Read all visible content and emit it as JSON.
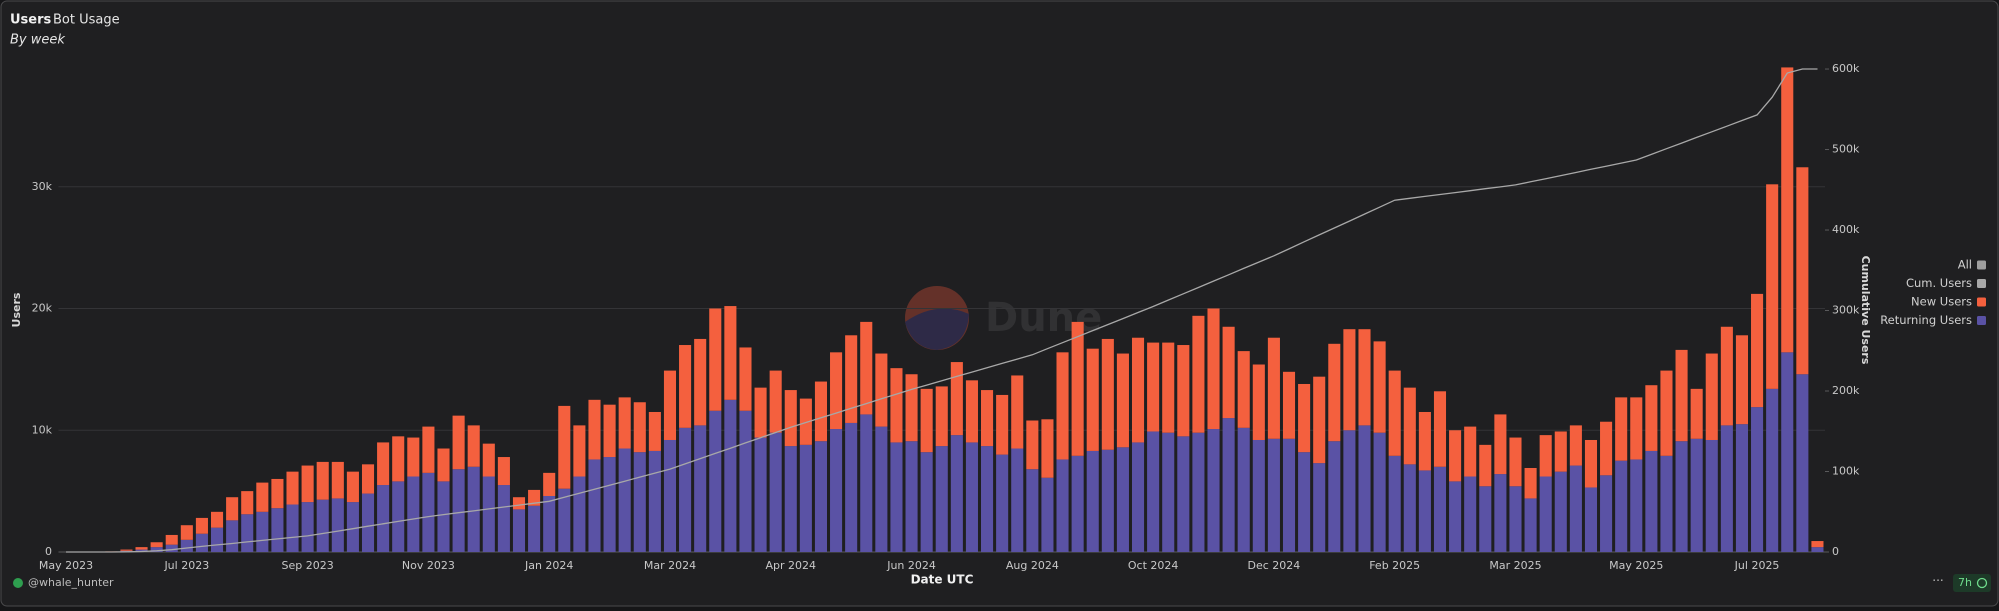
{
  "tabs": [
    "Users",
    "Bot Usage"
  ],
  "footer": {
    "author": "@whale_hunter",
    "age": "7h",
    "menu": "···"
  },
  "watermark": "Dune",
  "chart_data": {
    "type": "bar",
    "stacked": true,
    "subtitle": "By week",
    "x_label": "Date UTC",
    "y_label": "Users",
    "y2_label": "Cumulative Users",
    "legend_all": "All",
    "legend_all_color": "#9e9e9e",
    "legend_position": "right",
    "grid": true,
    "categories": [
      "May 2023",
      null,
      null,
      null,
      null,
      null,
      null,
      null,
      "Jul 2023",
      null,
      null,
      null,
      null,
      null,
      null,
      null,
      "Sep 2023",
      null,
      null,
      null,
      null,
      null,
      null,
      null,
      "Nov 2023",
      null,
      null,
      null,
      null,
      null,
      null,
      null,
      "Jan 2024",
      null,
      null,
      null,
      null,
      null,
      null,
      null,
      "Mar 2024",
      null,
      null,
      null,
      null,
      null,
      null,
      null,
      "Apr 2024",
      null,
      null,
      null,
      null,
      null,
      null,
      null,
      "Jun 2024",
      null,
      null,
      null,
      null,
      null,
      null,
      null,
      "Aug 2024",
      null,
      null,
      null,
      null,
      null,
      null,
      null,
      "Oct 2024",
      null,
      null,
      null,
      null,
      null,
      null,
      null,
      "Dec 2024",
      null,
      null,
      null,
      null,
      null,
      null,
      null,
      "Feb 2025",
      null,
      null,
      null,
      null,
      null,
      null,
      null,
      "Mar 2025",
      null,
      null,
      null,
      null,
      null,
      null,
      null,
      "May 2025",
      null,
      null,
      null,
      null,
      null,
      null,
      null,
      "Jul 2025",
      null,
      null,
      null,
      null
    ],
    "ylim": [
      0,
      40000
    ],
    "yticks": [
      0,
      {
        "value": 10000,
        "label": "10k"
      },
      {
        "value": 20000,
        "label": "20k"
      },
      {
        "value": 30000,
        "label": "30k"
      }
    ],
    "y2lim": [
      0,
      605000
    ],
    "y2ticks": [
      0,
      {
        "value": 100000,
        "label": "100k"
      },
      {
        "value": 200000,
        "label": "200k"
      },
      {
        "value": 300000,
        "label": "300k"
      },
      {
        "value": 400000,
        "label": "400k"
      },
      {
        "value": 500000,
        "label": "500k"
      },
      {
        "value": 600000,
        "label": "600k"
      }
    ],
    "series": [
      {
        "name": "Cum. Users",
        "type": "line",
        "axis": "y2",
        "color": "#a8a8a8",
        "values": [
          0,
          0,
          0,
          50,
          250,
          650,
          1450,
          2850,
          5000,
          6900,
          8800,
          10600,
          12500,
          14400,
          16300,
          18100,
          20000,
          23000,
          26000,
          29000,
          32000,
          35000,
          38000,
          41000,
          44000,
          46400,
          48800,
          51100,
          53500,
          55900,
          58300,
          60600,
          63000,
          68000,
          73000,
          78000,
          83000,
          88000,
          93000,
          98000,
          103000,
          109500,
          116000,
          122500,
          129000,
          135500,
          142000,
          148500,
          155000,
          160900,
          166800,
          172600,
          178500,
          184400,
          190300,
          196100,
          202000,
          207400,
          212800,
          218100,
          223500,
          228900,
          234300,
          239600,
          245000,
          252500,
          260000,
          267500,
          275000,
          282500,
          290000,
          297500,
          305000,
          312900,
          320800,
          328600,
          336500,
          344400,
          352300,
          360100,
          368000,
          376600,
          385300,
          393900,
          402500,
          411100,
          419800,
          428400,
          437000,
          439400,
          441800,
          444100,
          446500,
          448900,
          451300,
          453600,
          456000,
          459900,
          463800,
          467600,
          471500,
          475400,
          479300,
          483100,
          487000,
          494000,
          501000,
          508000,
          515000,
          522000,
          529000,
          536000,
          543000,
          565000,
          595000,
          600000,
          600000
        ]
      },
      {
        "name": "New Users",
        "color": "#f4603e",
        "values": [
          0,
          0,
          0,
          50,
          100,
          200,
          400,
          800,
          1200,
          1300,
          1300,
          1900,
          1900,
          2400,
          2400,
          2700,
          3000,
          3100,
          3000,
          2500,
          2400,
          3500,
          3700,
          3200,
          3800,
          2700,
          4400,
          3400,
          2700,
          2300,
          1000,
          1300,
          1900,
          6800,
          4200,
          4900,
          4300,
          4200,
          4100,
          3200,
          5700,
          6800,
          7100,
          8400,
          7700,
          5200,
          4100,
          5100,
          4600,
          3800,
          4900,
          6300,
          7200,
          7600,
          6000,
          6100,
          5500,
          5200,
          4900,
          6000,
          5100,
          4600,
          4900,
          6000,
          4000,
          4800,
          8800,
          11000,
          8400,
          9100,
          7700,
          8600,
          7300,
          7400,
          7500,
          9600,
          9900,
          7500,
          6300,
          6200,
          8300,
          5500,
          5600,
          7100,
          8000,
          8300,
          7900,
          7500,
          7000,
          6300,
          4800,
          6200,
          4200,
          4100,
          3400,
          4900,
          4000,
          2500,
          3400,
          3300,
          3300,
          3900,
          4400,
          5200,
          5100,
          5400,
          7000,
          7500,
          4100,
          7100,
          8100,
          7300,
          9300,
          16800,
          23400,
          17000,
          500
        ]
      },
      {
        "name": "Returning Users",
        "color": "#5a52a5",
        "values": [
          0,
          0,
          0,
          0,
          100,
          200,
          400,
          600,
          1000,
          1500,
          2000,
          2600,
          3100,
          3300,
          3600,
          3900,
          4100,
          4300,
          4400,
          4100,
          4800,
          5500,
          5800,
          6200,
          6500,
          5800,
          6800,
          7000,
          6200,
          5500,
          3500,
          3800,
          4600,
          5200,
          6200,
          7600,
          7800,
          8500,
          8200,
          8300,
          9200,
          10200,
          10400,
          11600,
          12500,
          11600,
          9400,
          9800,
          8700,
          8800,
          9100,
          10100,
          10600,
          11300,
          10300,
          9000,
          9100,
          8200,
          8700,
          9600,
          9000,
          8700,
          8000,
          8500,
          6800,
          6100,
          7600,
          7900,
          8300,
          8400,
          8600,
          9000,
          9900,
          9800,
          9500,
          9800,
          10100,
          11000,
          10200,
          9200,
          9300,
          9300,
          8200,
          7300,
          9100,
          10000,
          10400,
          9800,
          7900,
          7200,
          6700,
          7000,
          5800,
          6200,
          5400,
          6400,
          5400,
          4400,
          6200,
          6600,
          7100,
          5300,
          6300,
          7500,
          7600,
          8300,
          7900,
          9100,
          9300,
          9200,
          10400,
          10500,
          11900,
          13400,
          16400,
          14600,
          400
        ]
      }
    ]
  }
}
